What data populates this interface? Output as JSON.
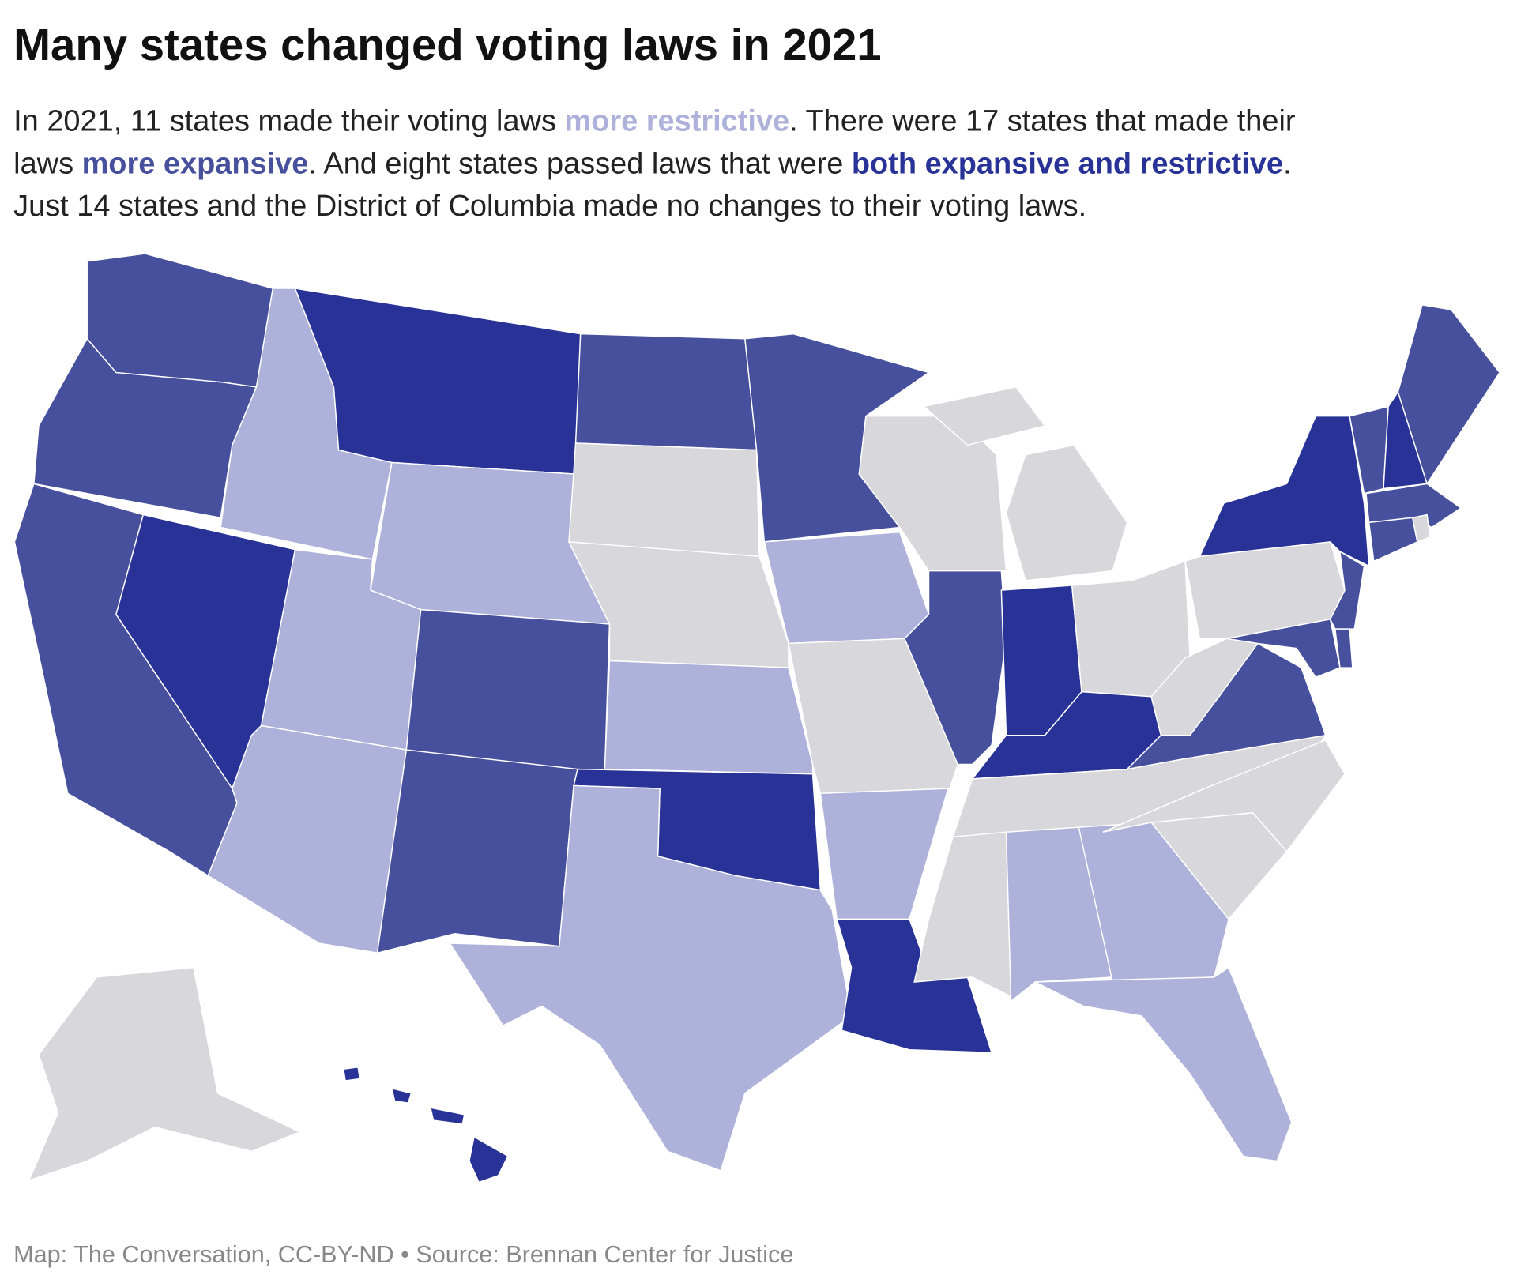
{
  "title": "Many states changed voting laws in 2021",
  "subtitle": [
    [
      {
        "text": "In 2021, 11 states made their voting laws "
      },
      {
        "text": "more restrictive",
        "color": "#aeb2da"
      },
      {
        "text": ". There were 17 states that made their"
      }
    ],
    [
      {
        "text": "laws "
      },
      {
        "text": "more expansive",
        "color": "#47509d"
      },
      {
        "text": ". And eight states passed laws that were "
      },
      {
        "text": "both expansive and restrictive",
        "color": "#283297"
      },
      {
        "text": "."
      }
    ],
    [
      {
        "text": "Just 14 states and the District of Columbia made no changes to their voting laws."
      }
    ]
  ],
  "footer": "Map: The Conversation, CC-BY-ND • Source: Brennan Center for Justice"
}
